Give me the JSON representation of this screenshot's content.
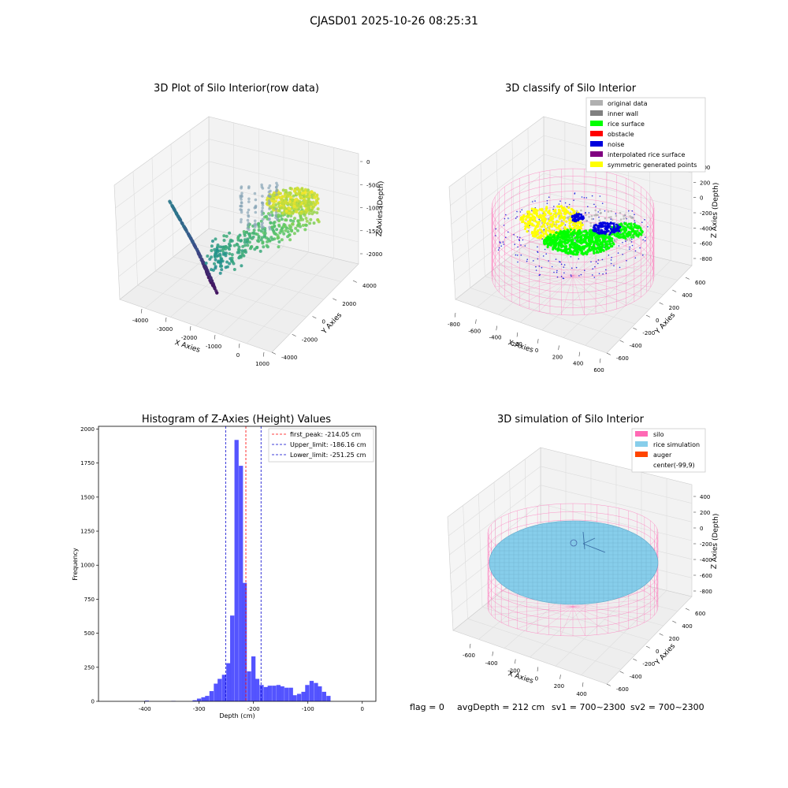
{
  "suptitle": "CJASD01 2025-10-26 08:25:31",
  "footer": {
    "flag": "flag = 0",
    "avg_depth": "avgDepth = 212 cm",
    "sv1": "sv1 = 700~2300",
    "sv2": "sv2 = 700~2300"
  },
  "colors": {
    "histogram_bar": "#4b4bff",
    "peak_line": "#ff0000",
    "limit_line": "#0000cc",
    "silo": "#ff69b4",
    "rice_simulation": "#87ceeb",
    "auger": "#ff4500",
    "rice_surface": "#00ff00",
    "obstacle": "#ff0000",
    "noise": "#0000dd",
    "original_data": "#b0b0b0",
    "inner_wall": "#808080",
    "interpolated": "#800080",
    "symmetric": "#ffff00"
  },
  "chart_data": [
    {
      "type": "scatter3d",
      "title": "3D Plot of Silo Interior(row data)",
      "xlabel": "X Axies",
      "ylabel": "Y Axies",
      "zlabel": "Z Axies (Depth)",
      "xticks": [
        "-4000",
        "-3000",
        "-2000",
        "-1000",
        "0",
        "1000"
      ],
      "yticks": [
        "-4000",
        "-2000",
        "0",
        "2000",
        "4000"
      ],
      "zticks": [
        "0",
        "-500",
        "-1000",
        "-1500",
        "-2000"
      ],
      "colormap": "viridis"
    },
    {
      "type": "scatter3d",
      "title": "3D classify of Silo Interior",
      "xlabel": "X Axies",
      "ylabel": "Y Axies",
      "zlabel": "Z Axies (Depth)",
      "xticks": [
        "-800",
        "-600",
        "-400",
        "-200",
        "0",
        "200",
        "400",
        "600"
      ],
      "yticks": [
        "-600",
        "-400",
        "-200",
        "0",
        "200",
        "400",
        "600"
      ],
      "zticks": [
        "400",
        "200",
        "0",
        "-200",
        "-400",
        "-600",
        "-800"
      ],
      "legend_position": "top-right",
      "legend": [
        {
          "label": "original data",
          "color": "#b0b0b0"
        },
        {
          "label": "inner wall",
          "color": "#808080"
        },
        {
          "label": "rice surface",
          "color": "#00ff00"
        },
        {
          "label": "obstacle",
          "color": "#ff0000"
        },
        {
          "label": "noise",
          "color": "#0000dd"
        },
        {
          "label": "interpolated rice surface",
          "color": "#800080"
        },
        {
          "label": "symmetric generated points",
          "color": "#ffff00"
        }
      ]
    },
    {
      "type": "bar",
      "title": "Histogram of Z-Axies (Height) Values",
      "xlabel": "Depth (cm)",
      "ylabel": "Frequency",
      "xlim": [
        -485,
        25
      ],
      "ylim": [
        0,
        2020
      ],
      "xticks": [
        -400,
        -300,
        -200,
        -100,
        0
      ],
      "yticks": [
        0,
        250,
        500,
        750,
        1000,
        1250,
        1500,
        1750,
        2000
      ],
      "bin_width": 7.7,
      "bins": [
        [
          -400,
          5
        ],
        [
          -351,
          3
        ],
        [
          -312,
          8
        ],
        [
          -304,
          20
        ],
        [
          -296,
          30
        ],
        [
          -289,
          40
        ],
        [
          -281,
          75
        ],
        [
          -273,
          130
        ],
        [
          -266,
          165
        ],
        [
          -258,
          195
        ],
        [
          -250,
          280
        ],
        [
          -243,
          630
        ],
        [
          -235,
          1920
        ],
        [
          -227,
          1730
        ],
        [
          -220,
          870
        ],
        [
          -212,
          220
        ],
        [
          -204,
          330
        ],
        [
          -197,
          165
        ],
        [
          -189,
          120
        ],
        [
          -181,
          105
        ],
        [
          -174,
          115
        ],
        [
          -166,
          115
        ],
        [
          -158,
          120
        ],
        [
          -151,
          110
        ],
        [
          -143,
          100
        ],
        [
          -135,
          100
        ],
        [
          -128,
          45
        ],
        [
          -120,
          55
        ],
        [
          -112,
          70
        ],
        [
          -105,
          120
        ],
        [
          -97,
          150
        ],
        [
          -89,
          135
        ],
        [
          -82,
          110
        ],
        [
          -74,
          70
        ],
        [
          -66,
          40
        ]
      ],
      "vlines": [
        {
          "x": -214.05,
          "label": "first_peak: -214.05 cm",
          "color": "#ff0000"
        },
        {
          "x": -186.16,
          "label": "Upper_limit: -186.16 cm",
          "color": "#0000cc"
        },
        {
          "x": -251.25,
          "label": "Lower_limit: -251.25 cm",
          "color": "#0000cc"
        }
      ],
      "legend_position": "top-right"
    },
    {
      "type": "surface3d",
      "title": "3D simulation of Silo Interior",
      "xlabel": "X Axies",
      "ylabel": "Y Axies",
      "zlabel": "Z Axies (Depth)",
      "xticks": [
        "-600",
        "-400",
        "-200",
        "0",
        "200",
        "400"
      ],
      "yticks": [
        "-600",
        "-400",
        "-200",
        "0",
        "200",
        "400",
        "600"
      ],
      "zticks": [
        "400",
        "200",
        "0",
        "-200",
        "-400",
        "-600",
        "-800"
      ],
      "legend_position": "top-right",
      "legend": [
        {
          "label": "silo",
          "color": "#ff69b4"
        },
        {
          "label": "rice simulation",
          "color": "#87ceeb"
        },
        {
          "label": "auger",
          "color": "#ff4500"
        },
        {
          "label": "center(-99,9)",
          "color": ""
        }
      ]
    }
  ]
}
